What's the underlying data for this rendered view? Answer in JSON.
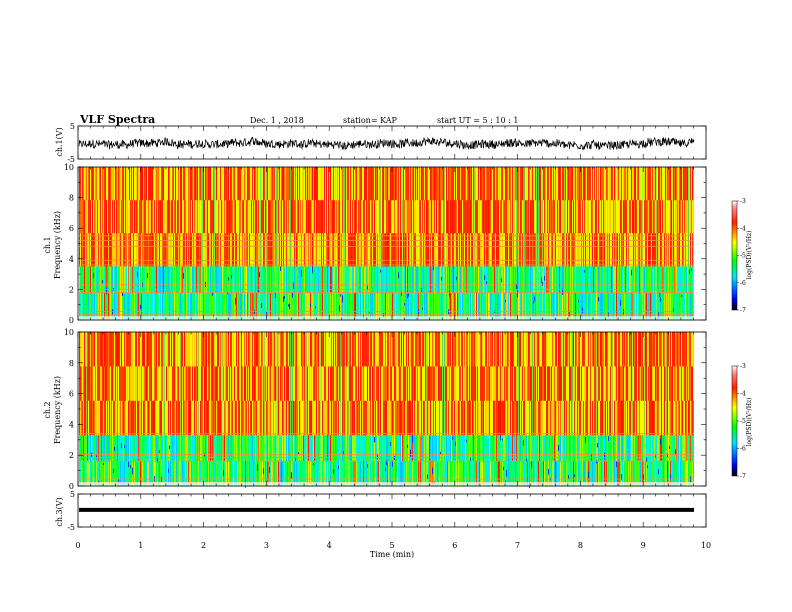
{
  "header": {
    "title": "VLF Spectra",
    "date": "Dec. 1 , 2018",
    "station": "station= KAP",
    "start": "start UT = 5 : 10 : 1"
  },
  "colors": {
    "waveform": "#000000",
    "axis": "#000000",
    "background": "#ffffff"
  },
  "chart_data": [
    {
      "type": "line",
      "panel": "ch1-waveform",
      "ylabel": "ch.1(V)",
      "ylim": [
        -5,
        5
      ],
      "yticks": [
        "5",
        "-5"
      ],
      "xlim": [
        0,
        10
      ],
      "notes": "noisy waveform oscillating roughly between -2 and +1.5 V"
    },
    {
      "type": "heatmap",
      "panel": "ch1-spectrogram",
      "ylabel_top": "ch.1",
      "ylabel": "Frequency (kHz)",
      "ylim": [
        0,
        10
      ],
      "yticks": [
        "0",
        "2",
        "4",
        "6",
        "8",
        "10"
      ],
      "xlim": [
        0,
        10
      ],
      "colorbar": {
        "label": "log(PSD)(V²/Hz)",
        "range": [
          -7,
          -3
        ],
        "ticks": [
          "-3",
          "-4",
          "-5",
          "-6",
          "-7"
        ]
      },
      "notes": "high power (red/yellow) above ~3.5 kHz, lower power (green/cyan) below; horizontal lines near 0.3, 1.8, 2.2, 3.6, 4.8, 5.2 kHz"
    },
    {
      "type": "heatmap",
      "panel": "ch2-spectrogram",
      "ylabel_top": "ch.2",
      "ylabel": "Frequency (kHz)",
      "ylim": [
        0,
        10
      ],
      "yticks": [
        "0",
        "2",
        "4",
        "6",
        "8",
        "10"
      ],
      "xlim": [
        0,
        10
      ],
      "colorbar": {
        "label": "log(PSD)(V²/Hz)",
        "range": [
          -7,
          -3
        ],
        "ticks": [
          "-3",
          "-4",
          "-5",
          "-6",
          "-7"
        ]
      },
      "notes": "high power above ~3.3 kHz, green/cyan/blue below; horizontal lines near 0.3, 1.8, 2.0, 3.4 kHz"
    },
    {
      "type": "line",
      "panel": "ch3-waveform",
      "ylabel": "ch.3(V)",
      "ylim": [
        -5,
        5
      ],
      "yticks": [
        "5",
        "-5"
      ],
      "xlim": [
        0,
        10
      ],
      "xlabel": "Time (min)",
      "xticks": [
        "0",
        "1",
        "2",
        "3",
        "4",
        "5",
        "6",
        "7",
        "8",
        "9",
        "10"
      ],
      "notes": "thick flat line near 0 V"
    }
  ]
}
